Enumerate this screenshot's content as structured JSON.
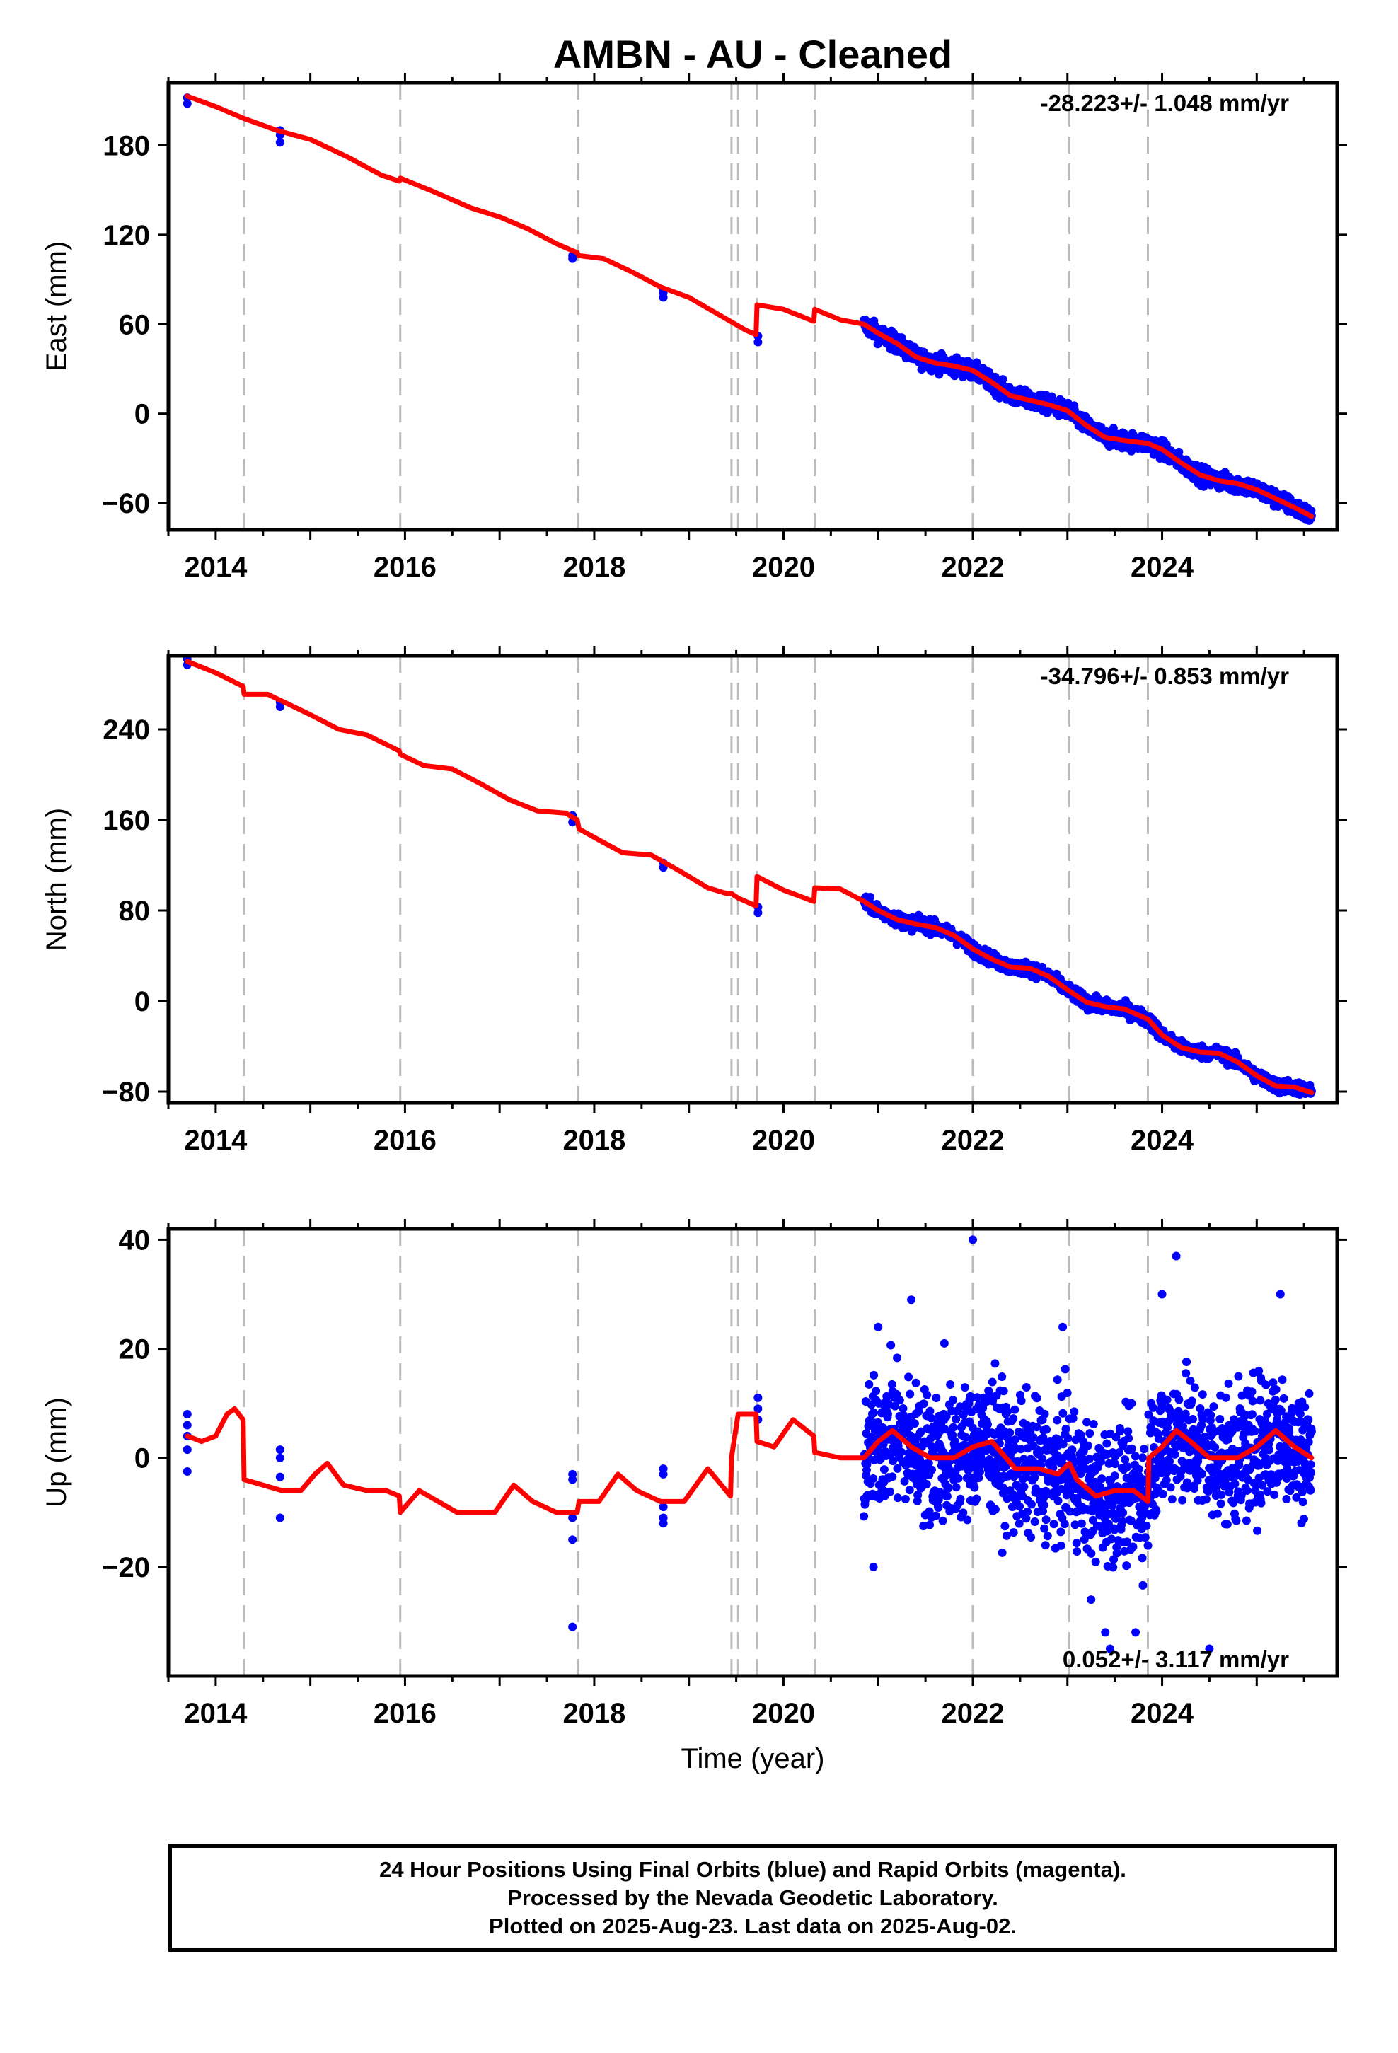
{
  "title": "AMBN  - AU - Cleaned",
  "colors": {
    "final_orbits": "#0000ff",
    "model": "#ff0000",
    "event_lines": "#bbbbbb",
    "frame": "#000000"
  },
  "footer": {
    "line1": "24 Hour Positions Using Final Orbits (blue) and Rapid Orbits (magenta).",
    "line2": "Processed by the Nevada Geodetic Laboratory.",
    "line3": "Plotted on 2025-Aug-23. Last data on 2025-Aug-02."
  },
  "chart_data": [
    {
      "type": "scatter",
      "id": "east",
      "ylabel": "East (mm)",
      "xlabel": "",
      "rate_text": "-28.223+/- 1.048 mm/yr",
      "xlim": [
        2013.5,
        2025.85
      ],
      "ylim": [
        -78,
        222
      ],
      "xticks": [
        2014,
        2016,
        2018,
        2020,
        2022,
        2024
      ],
      "yticks": [
        -60,
        0,
        60,
        120,
        180
      ],
      "event_lines": [
        2014.3,
        2015.95,
        2017.83,
        2019.45,
        2019.52,
        2019.72,
        2020.33,
        2022.0,
        2023.02,
        2023.85
      ],
      "obs_clusters": [
        {
          "x": 2013.7,
          "values": [
            208,
            212
          ]
        },
        {
          "x": 2014.68,
          "values": [
            182,
            187,
            190
          ]
        },
        {
          "x": 2017.77,
          "values": [
            104,
            106
          ]
        },
        {
          "x": 2018.73,
          "values": [
            78,
            81,
            83
          ]
        },
        {
          "x": 2019.73,
          "values": [
            48,
            52
          ]
        }
      ],
      "continuous": {
        "start": 2020.85,
        "end": 2025.58,
        "spread": 4
      },
      "model": [
        [
          2013.7,
          213
        ],
        [
          2014.0,
          206
        ],
        [
          2014.3,
          198
        ],
        [
          2014.65,
          190
        ],
        [
          2015.0,
          184
        ],
        [
          2015.4,
          172
        ],
        [
          2015.75,
          160
        ],
        [
          2015.94,
          156
        ],
        [
          2015.95,
          158
        ],
        [
          2016.3,
          149
        ],
        [
          2016.7,
          138
        ],
        [
          2017.0,
          132
        ],
        [
          2017.3,
          124
        ],
        [
          2017.6,
          114
        ],
        [
          2017.82,
          108
        ],
        [
          2017.84,
          106
        ],
        [
          2018.1,
          104
        ],
        [
          2018.4,
          95
        ],
        [
          2018.7,
          85
        ],
        [
          2019.0,
          78
        ],
        [
          2019.3,
          67
        ],
        [
          2019.6,
          56
        ],
        [
          2019.71,
          53
        ],
        [
          2019.72,
          73
        ],
        [
          2020.0,
          70
        ],
        [
          2020.32,
          62
        ],
        [
          2020.33,
          70
        ],
        [
          2020.6,
          63
        ],
        [
          2020.85,
          60
        ],
        [
          2021.0,
          54
        ],
        [
          2021.2,
          47
        ],
        [
          2021.4,
          38
        ],
        [
          2021.6,
          34
        ],
        [
          2021.8,
          32
        ],
        [
          2022.0,
          29
        ],
        [
          2022.2,
          21
        ],
        [
          2022.4,
          12
        ],
        [
          2022.6,
          9
        ],
        [
          2022.8,
          6
        ],
        [
          2023.0,
          2
        ],
        [
          2023.2,
          -8
        ],
        [
          2023.4,
          -16
        ],
        [
          2023.6,
          -18
        ],
        [
          2023.85,
          -20
        ],
        [
          2024.0,
          -24
        ],
        [
          2024.2,
          -33
        ],
        [
          2024.4,
          -41
        ],
        [
          2024.6,
          -45
        ],
        [
          2024.8,
          -47
        ],
        [
          2025.0,
          -51
        ],
        [
          2025.2,
          -57
        ],
        [
          2025.4,
          -63
        ],
        [
          2025.58,
          -69
        ]
      ]
    },
    {
      "type": "scatter",
      "id": "north",
      "ylabel": "North (mm)",
      "xlabel": "",
      "rate_text": "-34.796+/- 0.853 mm/yr",
      "xlim": [
        2013.5,
        2025.85
      ],
      "ylim": [
        -90,
        305
      ],
      "xticks": [
        2014,
        2016,
        2018,
        2020,
        2022,
        2024
      ],
      "yticks": [
        -80,
        0,
        80,
        160,
        240
      ],
      "event_lines": [
        2014.3,
        2015.95,
        2017.83,
        2019.45,
        2019.52,
        2019.72,
        2020.33,
        2022.0,
        2023.02,
        2023.85
      ],
      "obs_clusters": [
        {
          "x": 2013.7,
          "values": [
            297,
            302
          ]
        },
        {
          "x": 2014.68,
          "values": [
            260,
            264
          ]
        },
        {
          "x": 2017.77,
          "values": [
            158,
            164
          ]
        },
        {
          "x": 2018.73,
          "values": [
            118,
            122
          ]
        },
        {
          "x": 2019.73,
          "values": [
            78,
            83
          ]
        }
      ],
      "continuous": {
        "start": 2020.85,
        "end": 2025.58,
        "spread": 4
      },
      "model": [
        [
          2013.7,
          300
        ],
        [
          2014.0,
          290
        ],
        [
          2014.29,
          278
        ],
        [
          2014.3,
          271
        ],
        [
          2014.55,
          271
        ],
        [
          2014.8,
          261
        ],
        [
          2015.0,
          253
        ],
        [
          2015.3,
          240
        ],
        [
          2015.6,
          235
        ],
        [
          2015.94,
          221
        ],
        [
          2015.95,
          218
        ],
        [
          2016.2,
          208
        ],
        [
          2016.5,
          205
        ],
        [
          2016.8,
          192
        ],
        [
          2017.1,
          178
        ],
        [
          2017.4,
          168
        ],
        [
          2017.7,
          166
        ],
        [
          2017.82,
          160
        ],
        [
          2017.84,
          152
        ],
        [
          2018.1,
          140
        ],
        [
          2018.3,
          131
        ],
        [
          2018.6,
          129
        ],
        [
          2018.9,
          115
        ],
        [
          2019.2,
          100
        ],
        [
          2019.4,
          95
        ],
        [
          2019.45,
          95
        ],
        [
          2019.52,
          91
        ],
        [
          2019.71,
          84
        ],
        [
          2019.72,
          110
        ],
        [
          2020.0,
          98
        ],
        [
          2020.32,
          88
        ],
        [
          2020.33,
          100
        ],
        [
          2020.6,
          99
        ],
        [
          2020.85,
          88
        ],
        [
          2021.0,
          80
        ],
        [
          2021.2,
          72
        ],
        [
          2021.4,
          68
        ],
        [
          2021.6,
          65
        ],
        [
          2021.8,
          58
        ],
        [
          2022.0,
          46
        ],
        [
          2022.2,
          37
        ],
        [
          2022.4,
          30
        ],
        [
          2022.6,
          29
        ],
        [
          2022.8,
          22
        ],
        [
          2023.0,
          10
        ],
        [
          2023.2,
          -1
        ],
        [
          2023.4,
          -5
        ],
        [
          2023.6,
          -7
        ],
        [
          2023.85,
          -16
        ],
        [
          2024.0,
          -30
        ],
        [
          2024.2,
          -41
        ],
        [
          2024.4,
          -45
        ],
        [
          2024.6,
          -46
        ],
        [
          2024.8,
          -54
        ],
        [
          2025.0,
          -66
        ],
        [
          2025.2,
          -75
        ],
        [
          2025.4,
          -76
        ],
        [
          2025.58,
          -81
        ]
      ]
    },
    {
      "type": "scatter",
      "id": "up",
      "ylabel": "Up (mm)",
      "xlabel": "Time (year)",
      "rate_text": "0.052+/- 3.117 mm/yr",
      "xlim": [
        2013.5,
        2025.85
      ],
      "ylim": [
        -40,
        42
      ],
      "xticks": [
        2014,
        2016,
        2018,
        2020,
        2022,
        2024
      ],
      "yticks": [
        -20,
        0,
        20,
        40
      ],
      "event_lines": [
        2014.3,
        2015.95,
        2017.83,
        2019.45,
        2019.52,
        2019.72,
        2020.33,
        2022.0,
        2023.02,
        2023.85
      ],
      "obs_clusters": [
        {
          "x": 2013.7,
          "values": [
            8,
            6,
            4,
            1.5,
            -2.5
          ]
        },
        {
          "x": 2014.68,
          "values": [
            1.5,
            0,
            -3.5,
            -11
          ]
        },
        {
          "x": 2017.77,
          "values": [
            -3,
            -4,
            -11,
            -15,
            -31
          ]
        },
        {
          "x": 2018.73,
          "values": [
            -2,
            -3,
            -9,
            -11,
            -12
          ]
        },
        {
          "x": 2019.73,
          "values": [
            11,
            9,
            7
          ]
        }
      ],
      "continuous": {
        "start": 2020.85,
        "end": 2025.58,
        "spread": 8.5
      },
      "outliers": [
        [
          2022.0,
          40
        ],
        [
          2024.15,
          37
        ],
        [
          2024.0,
          30
        ],
        [
          2021.35,
          29
        ],
        [
          2025.25,
          30
        ],
        [
          2023.45,
          -35
        ],
        [
          2024.5,
          -35
        ],
        [
          2023.72,
          -32
        ],
        [
          2023.4,
          -32
        ],
        [
          2021.0,
          24
        ],
        [
          2022.95,
          24
        ],
        [
          2021.7,
          21
        ],
        [
          2023.25,
          -26
        ],
        [
          2020.95,
          -20
        ]
      ],
      "model": [
        [
          2013.7,
          4
        ],
        [
          2013.85,
          3
        ],
        [
          2014.0,
          4
        ],
        [
          2014.12,
          8
        ],
        [
          2014.2,
          9
        ],
        [
          2014.29,
          7
        ],
        [
          2014.3,
          -4
        ],
        [
          2014.5,
          -5
        ],
        [
          2014.7,
          -6
        ],
        [
          2014.9,
          -6
        ],
        [
          2015.05,
          -3
        ],
        [
          2015.18,
          -1
        ],
        [
          2015.35,
          -5
        ],
        [
          2015.6,
          -6
        ],
        [
          2015.8,
          -6
        ],
        [
          2015.94,
          -7
        ],
        [
          2015.95,
          -10
        ],
        [
          2016.15,
          -6
        ],
        [
          2016.35,
          -8
        ],
        [
          2016.55,
          -10
        ],
        [
          2016.75,
          -10
        ],
        [
          2016.95,
          -10
        ],
        [
          2017.15,
          -5
        ],
        [
          2017.35,
          -8
        ],
        [
          2017.6,
          -10
        ],
        [
          2017.82,
          -10
        ],
        [
          2017.84,
          -8
        ],
        [
          2018.05,
          -8
        ],
        [
          2018.25,
          -3
        ],
        [
          2018.45,
          -6
        ],
        [
          2018.7,
          -8
        ],
        [
          2018.95,
          -8
        ],
        [
          2019.2,
          -2
        ],
        [
          2019.44,
          -7
        ],
        [
          2019.45,
          0
        ],
        [
          2019.52,
          8
        ],
        [
          2019.71,
          8
        ],
        [
          2019.72,
          3
        ],
        [
          2019.9,
          2
        ],
        [
          2020.1,
          7
        ],
        [
          2020.32,
          4
        ],
        [
          2020.33,
          1
        ],
        [
          2020.6,
          0
        ],
        [
          2020.85,
          0
        ],
        [
          2021.0,
          3
        ],
        [
          2021.15,
          5
        ],
        [
          2021.35,
          2
        ],
        [
          2021.55,
          0
        ],
        [
          2021.8,
          0
        ],
        [
          2022.0,
          2
        ],
        [
          2022.2,
          3
        ],
        [
          2022.45,
          -2
        ],
        [
          2022.7,
          -2
        ],
        [
          2022.9,
          -3
        ],
        [
          2023.02,
          -1
        ],
        [
          2023.1,
          -4
        ],
        [
          2023.3,
          -7
        ],
        [
          2023.5,
          -6
        ],
        [
          2023.7,
          -6
        ],
        [
          2023.85,
          -8
        ],
        [
          2023.86,
          0
        ],
        [
          2024.0,
          2
        ],
        [
          2024.15,
          5
        ],
        [
          2024.3,
          3
        ],
        [
          2024.5,
          0
        ],
        [
          2024.8,
          0
        ],
        [
          2025.0,
          2
        ],
        [
          2025.2,
          5
        ],
        [
          2025.4,
          2
        ],
        [
          2025.58,
          0
        ]
      ]
    }
  ]
}
